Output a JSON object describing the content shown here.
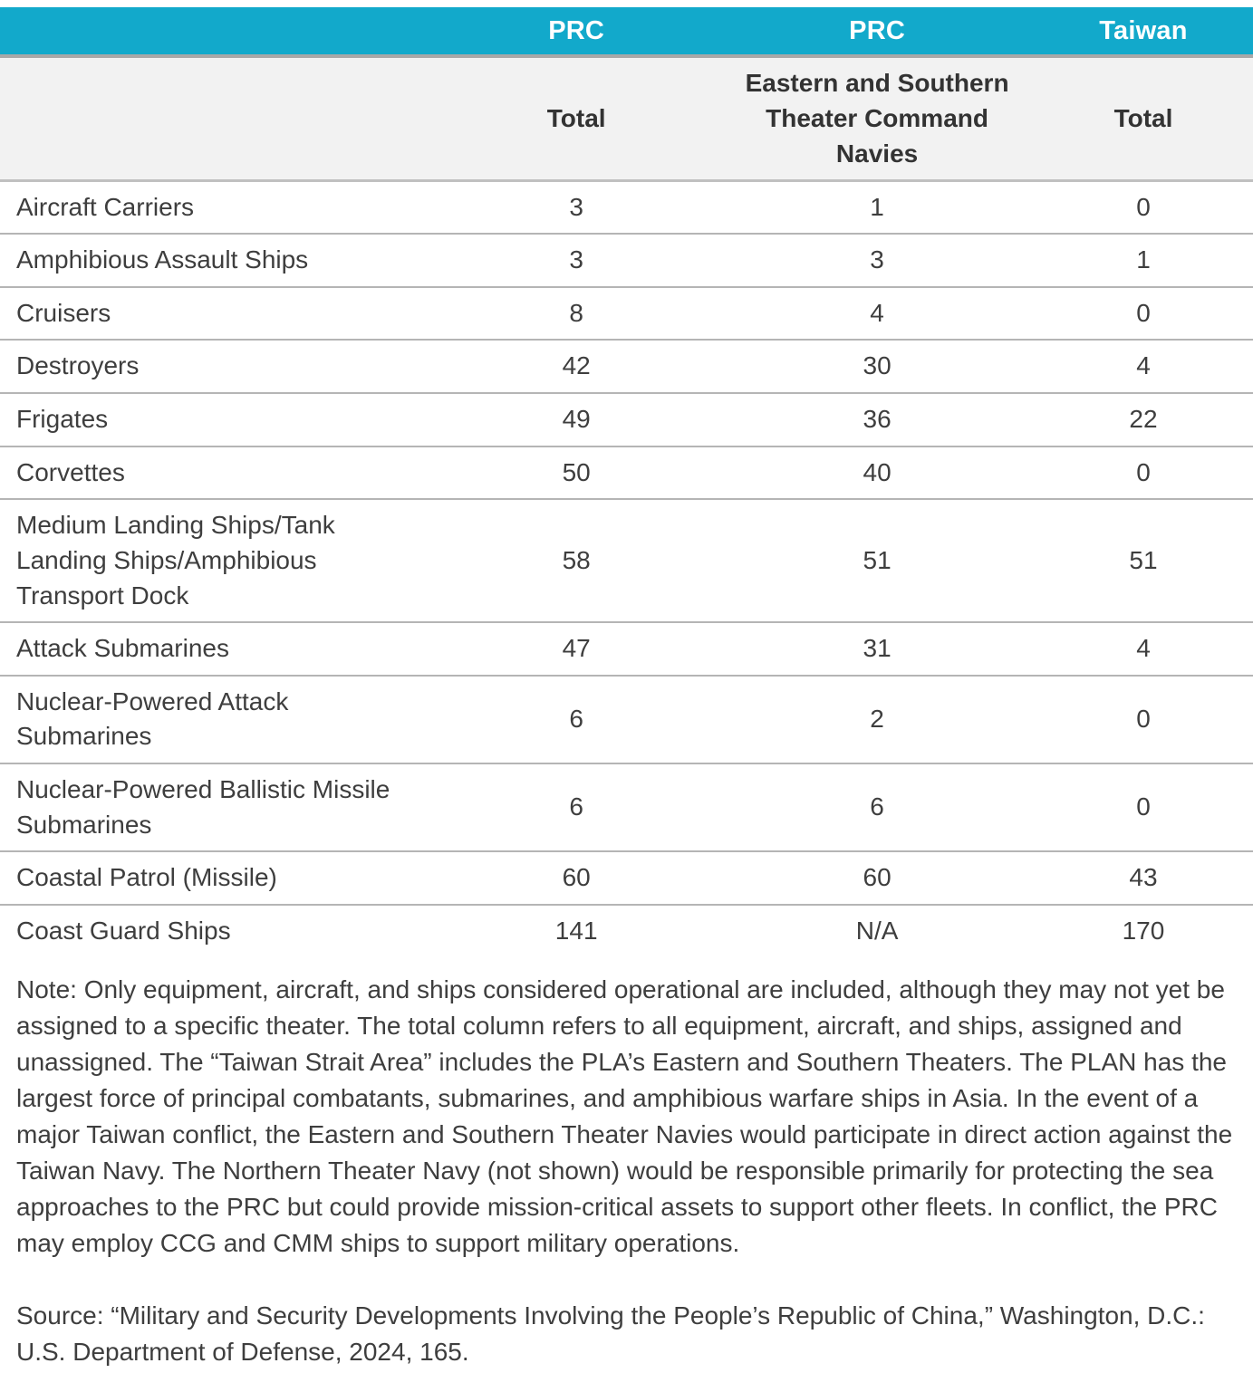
{
  "colors": {
    "header_bg": "#12a9cb",
    "header_text": "#ffffff",
    "subheader_bg": "#f2f2f2",
    "divider": "#a8a8a8",
    "row_border": "#b5b5b5",
    "body_text": "#3e3e3e"
  },
  "table": {
    "header_groups": [
      "",
      "PRC",
      "PRC",
      "Taiwan"
    ],
    "subheaders": [
      "",
      "Total",
      "Eastern and Southern Theater Command Navies",
      "Total"
    ],
    "rows": [
      {
        "label": "Aircraft Carriers",
        "values": [
          "3",
          "1",
          "0"
        ]
      },
      {
        "label": "Amphibious Assault Ships",
        "values": [
          "3",
          "3",
          "1"
        ]
      },
      {
        "label": "Cruisers",
        "values": [
          "8",
          "4",
          "0"
        ]
      },
      {
        "label": "Destroyers",
        "values": [
          "42",
          "30",
          "4"
        ]
      },
      {
        "label": "Frigates",
        "values": [
          "49",
          "36",
          "22"
        ]
      },
      {
        "label": "Corvettes",
        "values": [
          "50",
          "40",
          "0"
        ]
      },
      {
        "label": "Medium Landing Ships/Tank Landing Ships/Amphibious Transport Dock",
        "values": [
          "58",
          "51",
          "51"
        ]
      },
      {
        "label": "Attack Submarines",
        "values": [
          "47",
          "31",
          "4"
        ]
      },
      {
        "label": "Nuclear-Powered Attack Submarines",
        "values": [
          "6",
          "2",
          "0"
        ]
      },
      {
        "label": "Nuclear-Powered Ballistic Missile Submarines",
        "values": [
          "6",
          "6",
          "0"
        ]
      },
      {
        "label": "Coastal Patrol (Missile)",
        "values": [
          "60",
          "60",
          "43"
        ]
      },
      {
        "label": "Coast Guard Ships",
        "values": [
          "141",
          "N/A",
          "170"
        ]
      }
    ]
  },
  "note": "Note: Only equipment, aircraft, and ships considered operational are included, although they may not yet be assigned to a specific theater. The total column refers to all equipment, aircraft, and ships, assigned and unassigned. The “Taiwan Strait Area” includes the PLA’s Eastern and Southern Theaters. The PLAN has the largest force of principal combatants, submarines, and amphibious warfare ships in Asia. In the event of a major Taiwan conflict, the Eastern and Southern Theater Navies would participate in direct action against the Taiwan Navy. The Northern Theater Navy (not shown) would be responsible primarily for protecting the sea approaches to the PRC but could provide mission-critical assets to support other fleets. In conflict, the PRC may employ CCG and CMM ships to support military operations.",
  "source": "Source: “Military and Security Developments Involving the People’s Republic of China,” Washington, D.C.: U.S. Department of Defense, 2024, 165."
}
